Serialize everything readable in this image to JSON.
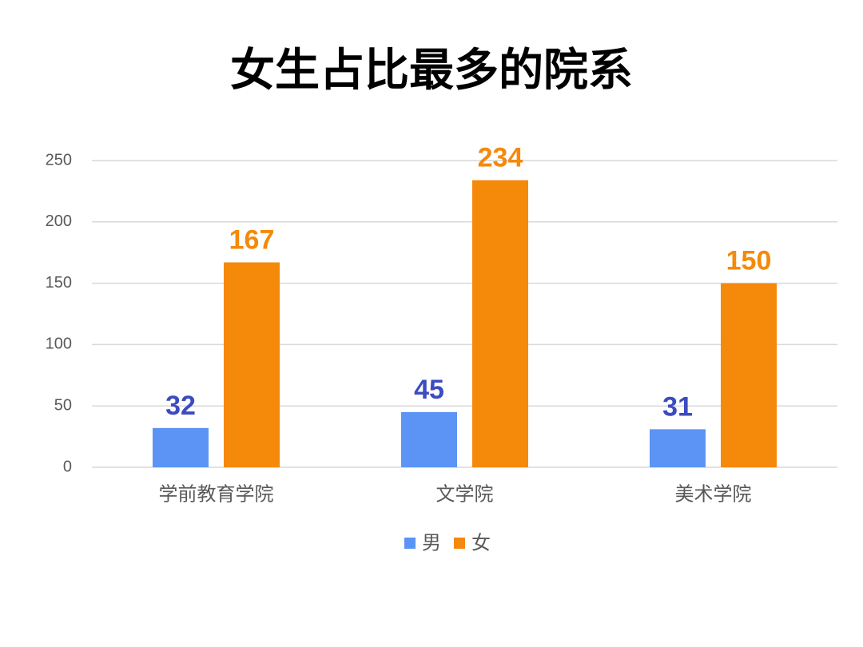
{
  "chart_data": {
    "type": "bar",
    "title": "女生占比最多的院系",
    "categories": [
      "学前教育学院",
      "文学院",
      "美术学院"
    ],
    "series": [
      {
        "name": "男",
        "color": "#5b94f5",
        "label_color": "#3b4cc0",
        "values": [
          32,
          45,
          31
        ]
      },
      {
        "name": "女",
        "color": "#f5890a",
        "label_color": "#f5890a",
        "values": [
          167,
          234,
          150
        ]
      }
    ],
    "ylim": [
      0,
      250
    ],
    "yticks": [
      0,
      50,
      100,
      150,
      200,
      250
    ],
    "grid": true,
    "legend": "bottom"
  }
}
